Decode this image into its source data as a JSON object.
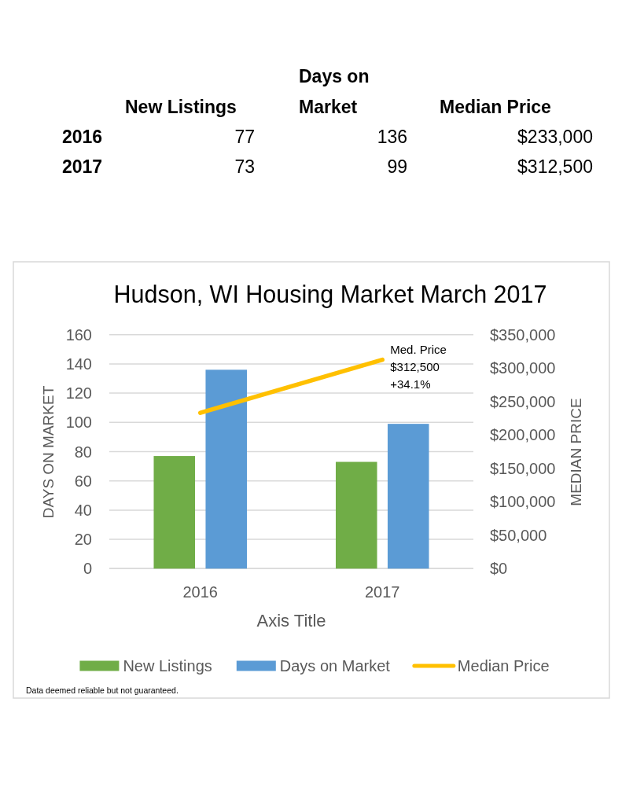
{
  "chart_data": [
    {
      "type": "other",
      "categories": [
        "New Listings",
        "Days on Market",
        "Median Price"
      ],
      "y_categories": [
        "2016",
        "2017"
      ],
      "cell_labels": [
        [
          "77",
          "136",
          "$233,000"
        ],
        [
          "73",
          "99",
          "$312,500"
        ]
      ]
    },
    {
      "type": "bar",
      "title": "Hudson, WI Housing Market March 2017",
      "xlabel": "Axis Title",
      "ylabel": "DAYS ON MARKET",
      "y2label": "MEDIAN PRICE",
      "categories": [
        "2016",
        "2017"
      ],
      "series": [
        {
          "name": "New Listings",
          "type": "bar",
          "color": "#70ad47",
          "values": [
            77,
            73
          ]
        },
        {
          "name": "Days on Market",
          "type": "bar",
          "color": "#5b9bd5",
          "values": [
            136,
            99
          ]
        },
        {
          "name": "Median Price",
          "type": "line",
          "axis": "y2",
          "color": "#ffc000",
          "values": [
            233000,
            312500
          ]
        }
      ],
      "ylim": [
        0,
        160
      ],
      "yticks": [
        0,
        20,
        40,
        60,
        80,
        100,
        120,
        140,
        160
      ],
      "y2lim": [
        0,
        350000
      ],
      "y2ticks": [
        {
          "value": 0,
          "label": "$0"
        },
        {
          "value": 50000,
          "label": "$50,000"
        },
        {
          "value": 100000,
          "label": "$100,000"
        },
        {
          "value": 150000,
          "label": "$150,000"
        },
        {
          "value": 200000,
          "label": "$200,000"
        },
        {
          "value": 250000,
          "label": "$250,000"
        },
        {
          "value": 300000,
          "label": "$300,000"
        },
        {
          "value": 350000,
          "label": "$350,000"
        }
      ],
      "grid": "y",
      "legend": "bottom",
      "annotations": [
        "Med. Price\n$312,500\n+34.1%",
        "Data deemed reliable but not guaranteed."
      ]
    }
  ]
}
